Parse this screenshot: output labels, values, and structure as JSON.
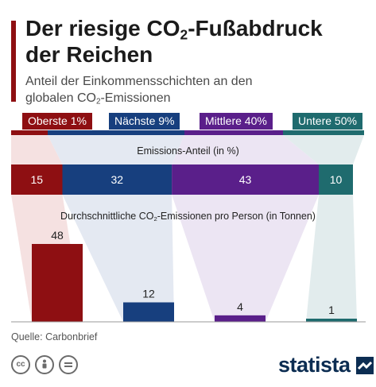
{
  "header": {
    "title_line1_a": "Der riesige CO",
    "title_line1_sub": "2",
    "title_line1_b": "-Fußabdruck",
    "title_line2": "der Reichen",
    "subtitle_line1": "Anteil der Einkommensschichten an den",
    "subtitle_line2_a": "globalen CO",
    "subtitle_line2_sub": "2",
    "subtitle_line2_b": "-Emissionen"
  },
  "groups": [
    {
      "label": "Oberste 1%",
      "color": "#8e0f12"
    },
    {
      "label": "Nächste 9%",
      "color": "#173f7e"
    },
    {
      "label": "Mittlere 40%",
      "color": "#5a1f8a"
    },
    {
      "label": "Untere 50%",
      "color": "#1f6b6e"
    }
  ],
  "share_label": "Emissions-Anteil (in %)",
  "per_person_label_a": "Durchschnittliche CO",
  "per_person_label_sub": "2",
  "per_person_label_b": "-Emissionen pro Person (in Tonnen)",
  "source": "Quelle: Carbonbrief",
  "brand": "statista",
  "license_icons": [
    "cc-icon",
    "attribution-icon",
    "no-derivatives-icon"
  ],
  "chart_data": [
    {
      "type": "bar",
      "orientation": "horizontal-stacked",
      "title": "Emissions-Anteil (in %)",
      "categories": [
        "Oberste 1%",
        "Nächste 9%",
        "Mittlere 40%",
        "Untere 50%"
      ],
      "values": [
        15,
        32,
        43,
        10
      ],
      "colors": [
        "#8e0f12",
        "#173f7e",
        "#5a1f8a",
        "#1f6b6e"
      ]
    },
    {
      "type": "bar",
      "title": "Durchschnittliche CO2-Emissionen pro Person (in Tonnen)",
      "categories": [
        "Oberste 1%",
        "Nächste 9%",
        "Mittlere 40%",
        "Untere 50%"
      ],
      "values": [
        48,
        12,
        4,
        1
      ],
      "colors": [
        "#8e0f12",
        "#173f7e",
        "#5a1f8a",
        "#1f6b6e"
      ]
    }
  ]
}
